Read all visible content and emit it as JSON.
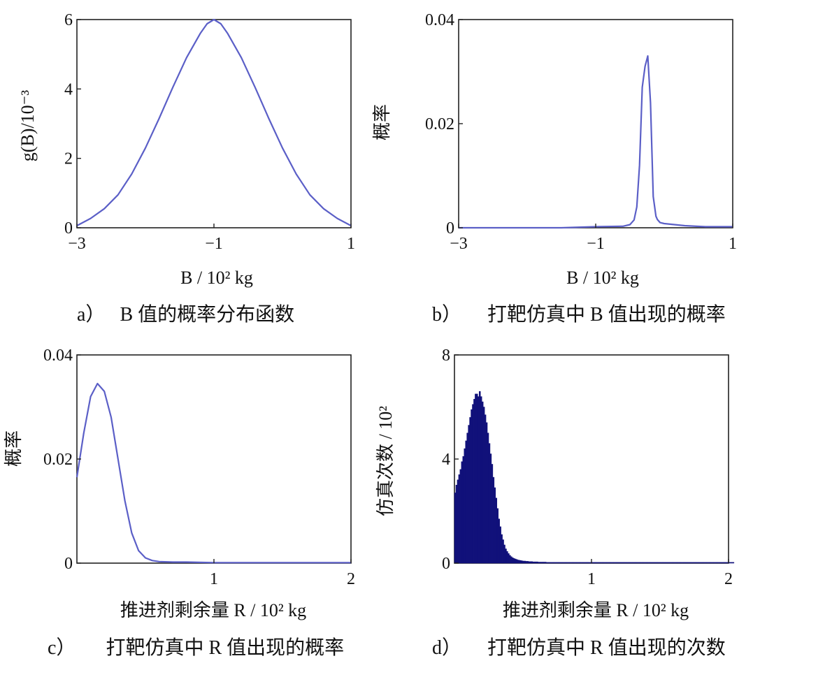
{
  "chart_data": [
    {
      "panel": "a",
      "type": "line",
      "caption_prefix": "a）",
      "caption_text": "B 值的概率分布函数",
      "xlabel": "B / 10² kg",
      "ylabel": "g(B)/10⁻³",
      "xlim": [
        -3,
        1
      ],
      "ylim": [
        0,
        6
      ],
      "xticks": [
        "−3",
        "−1",
        "1"
      ],
      "xtick_values": [
        -3,
        -1,
        1
      ],
      "yticks": [
        "0",
        "2",
        "4",
        "6"
      ],
      "ytick_values": [
        0,
        2,
        4,
        6
      ],
      "series": [
        {
          "color": "#5b5fc7",
          "x": [
            -3,
            -2.8,
            -2.6,
            -2.4,
            -2.2,
            -2.0,
            -1.8,
            -1.6,
            -1.4,
            -1.2,
            -1.1,
            -1.0,
            -0.9,
            -0.8,
            -0.6,
            -0.4,
            -0.2,
            0.0,
            0.2,
            0.4,
            0.6,
            0.8,
            1.0
          ],
          "y": [
            0.06,
            0.27,
            0.55,
            0.95,
            1.55,
            2.3,
            3.15,
            4.05,
            4.9,
            5.6,
            5.88,
            6.0,
            5.88,
            5.6,
            4.9,
            4.05,
            3.15,
            2.3,
            1.55,
            0.95,
            0.55,
            0.27,
            0.06
          ]
        }
      ]
    },
    {
      "panel": "b",
      "type": "line",
      "caption_prefix": "b）",
      "caption_text": "打靶仿真中 B 值出现的概率",
      "xlabel": "B / 10² kg",
      "ylabel": "概率",
      "xlim": [
        -3,
        1
      ],
      "ylim": [
        0,
        0.04
      ],
      "xticks": [
        "−3",
        "−1",
        "1"
      ],
      "xtick_values": [
        -3,
        -1,
        1
      ],
      "yticks": [
        "0",
        "0.02",
        "0.04"
      ],
      "ytick_values": [
        0,
        0.02,
        0.04
      ],
      "series": [
        {
          "color": "#5b5fc7",
          "x": [
            -3,
            -1.5,
            -1.0,
            -0.6,
            -0.5,
            -0.44,
            -0.4,
            -0.36,
            -0.32,
            -0.28,
            -0.24,
            -0.2,
            -0.16,
            -0.12,
            -0.1,
            -0.06,
            0.0,
            0.3,
            0.6,
            1.0
          ],
          "y": [
            0,
            0,
            0.0002,
            0.0003,
            0.0006,
            0.0015,
            0.004,
            0.012,
            0.027,
            0.031,
            0.033,
            0.024,
            0.006,
            0.0022,
            0.0016,
            0.001,
            0.0008,
            0.0004,
            0.0002,
            0.0002
          ]
        }
      ]
    },
    {
      "panel": "c",
      "type": "line",
      "caption_prefix": "c）",
      "caption_text": "打靶仿真中 R 值出现的概率",
      "xlabel": "推进剂剩余量 R / 10² kg",
      "ylabel": "概率",
      "xlim": [
        0,
        2
      ],
      "ylim": [
        0,
        0.04
      ],
      "xticks": [
        "1",
        "2"
      ],
      "xtick_values": [
        1,
        2
      ],
      "yticks": [
        "0",
        "0.02",
        "0.04"
      ],
      "ytick_values": [
        0,
        0.02,
        0.04
      ],
      "series": [
        {
          "color": "#5b5fc7",
          "x": [
            0.0,
            0.05,
            0.1,
            0.15,
            0.2,
            0.25,
            0.3,
            0.35,
            0.4,
            0.45,
            0.5,
            0.55,
            0.6,
            0.7,
            0.8,
            1.0,
            1.5,
            2.0
          ],
          "y": [
            0.0165,
            0.025,
            0.032,
            0.0345,
            0.033,
            0.028,
            0.02,
            0.012,
            0.0058,
            0.0024,
            0.001,
            0.0005,
            0.0003,
            0.0002,
            0.0002,
            0.0001,
            0.0001,
            0.0001
          ]
        }
      ]
    },
    {
      "panel": "d",
      "type": "bar",
      "caption_prefix": "d）",
      "caption_text": "打靶仿真中 R 值出现的次数",
      "xlabel": "推进剂剩余量 R / 10² kg",
      "ylabel": "仿真次数 / 10²",
      "xlim": [
        0,
        2
      ],
      "ylim": [
        0,
        8
      ],
      "xticks": [
        "1",
        "2"
      ],
      "xtick_values": [
        1,
        2
      ],
      "yticks": [
        "0",
        "4",
        "8"
      ],
      "ytick_values": [
        0,
        4,
        8
      ],
      "color": "#11117a",
      "bin_start": 0,
      "bin_width": 0.01,
      "values": [
        2.7,
        3.0,
        3.2,
        3.4,
        3.6,
        3.9,
        4.1,
        4.4,
        4.7,
        5.0,
        5.3,
        5.6,
        5.9,
        6.1,
        6.3,
        6.5,
        6.5,
        6.4,
        6.6,
        6.4,
        6.2,
        6.0,
        5.7,
        5.4,
        5.0,
        4.6,
        4.2,
        3.8,
        3.3,
        2.9,
        2.5,
        2.1,
        1.7,
        1.4,
        1.1,
        0.9,
        0.7,
        0.55,
        0.45,
        0.37,
        0.3,
        0.25,
        0.21,
        0.18,
        0.16,
        0.14,
        0.12,
        0.11,
        0.1,
        0.09,
        0.08,
        0.08,
        0.07,
        0.07,
        0.06,
        0.06,
        0.06,
        0.05,
        0.05,
        0.05,
        0.05,
        0.04,
        0.04,
        0.04,
        0.04,
        0.04,
        0.04,
        0.03,
        0.03,
        0.03,
        0.03,
        0.03,
        0.03,
        0.03,
        0.03,
        0.03,
        0.03,
        0.03,
        0.03,
        0.03,
        0.03,
        0.03,
        0.03,
        0.03,
        0.03,
        0.03,
        0.03,
        0.03,
        0.03,
        0.03,
        0.03,
        0.03,
        0.03,
        0.03,
        0.03,
        0.03,
        0.03,
        0.03,
        0.03,
        0.03,
        0.03,
        0.03,
        0.03,
        0.03,
        0.03,
        0.03,
        0.03,
        0.03,
        0.03,
        0.03,
        0.03,
        0.03,
        0.03,
        0.03,
        0.03,
        0.03,
        0.03,
        0.03,
        0.03,
        0.03,
        0.03,
        0.03,
        0.03,
        0.03,
        0.03,
        0.03,
        0.03,
        0.03,
        0.03,
        0.03,
        0.03,
        0.03,
        0.03,
        0.03,
        0.03,
        0.03,
        0.03,
        0.03,
        0.03,
        0.03,
        0.03,
        0.03,
        0.03,
        0.03,
        0.03,
        0.03,
        0.03,
        0.03,
        0.03,
        0.03,
        0.03,
        0.03,
        0.03,
        0.03,
        0.03,
        0.03,
        0.03,
        0.03,
        0.03,
        0.03,
        0.03,
        0.03,
        0.03,
        0.03,
        0.03,
        0.03,
        0.03,
        0.03,
        0.03,
        0.03,
        0.03,
        0.03,
        0.03,
        0.03,
        0.03,
        0.03,
        0.03,
        0.03,
        0.03,
        0.03,
        0.03,
        0.03,
        0.03,
        0.03,
        0.03,
        0.03,
        0.03,
        0.03,
        0.03,
        0.03,
        0.03,
        0.03,
        0.03,
        0.03,
        0.03,
        0.03,
        0.03,
        0.03,
        0.03,
        0.03,
        0.03,
        0.03,
        0.03,
        0.03
      ]
    }
  ]
}
